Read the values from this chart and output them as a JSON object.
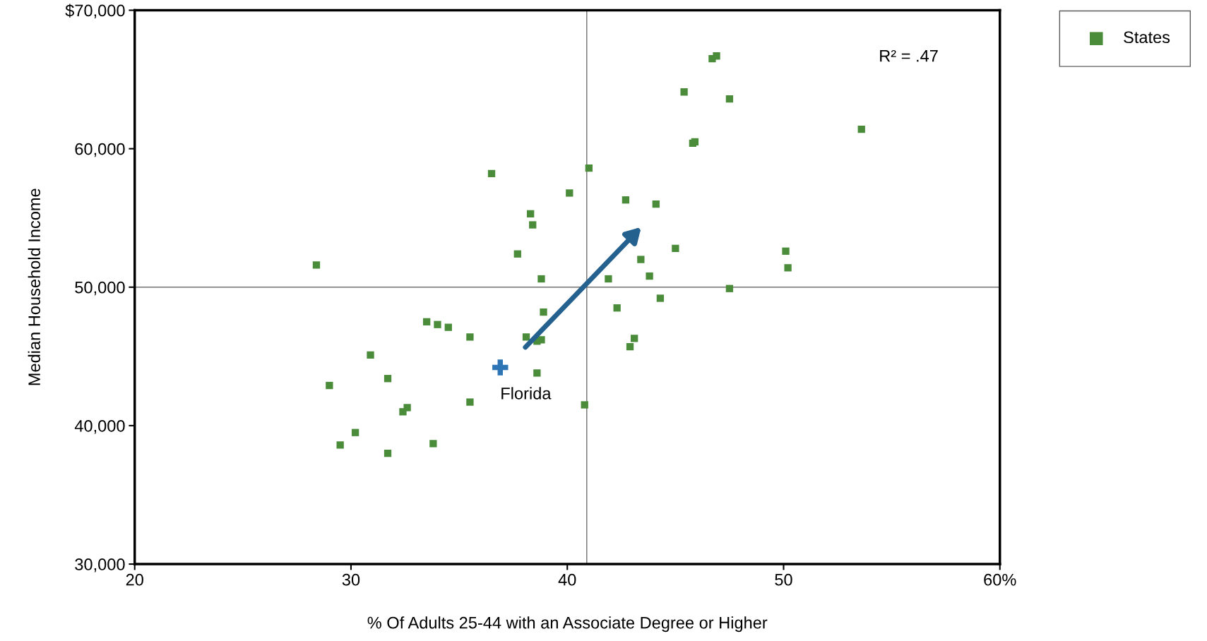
{
  "chart_data": {
    "type": "scatter",
    "xlabel": "% Of Adults 25-44 with an Associate Degree or Higher",
    "ylabel": "Median Household Income",
    "xlim": [
      20,
      60
    ],
    "xticks": [
      20,
      30,
      40,
      50,
      {
        "value": 60,
        "label": "60%"
      }
    ],
    "ylim": [
      30000,
      70000
    ],
    "yticks": [
      {
        "value": 30000,
        "label": "30,000"
      },
      {
        "value": 40000,
        "label": "40,000"
      },
      {
        "value": 50000,
        "label": "50,000"
      },
      {
        "value": 60000,
        "label": "60,000"
      },
      {
        "value": 70000,
        "label": "$70,000"
      }
    ],
    "grid": false,
    "legend": "top right",
    "marker": "square",
    "series": [
      {
        "name": "States",
        "color": "#4a8c3a",
        "x": [
          28.4,
          29.0,
          29.5,
          30.2,
          30.9,
          31.7,
          31.7,
          32.4,
          32.6,
          33.5,
          33.8,
          34.0,
          34.5,
          35.5,
          35.5,
          36.5,
          37.7,
          38.1,
          38.3,
          38.4,
          38.6,
          38.6,
          38.8,
          38.8,
          38.9,
          40.1,
          40.8,
          41.0,
          41.9,
          42.3,
          42.7,
          42.9,
          43.1,
          43.4,
          43.8,
          44.1,
          44.3,
          45.0,
          45.4,
          45.8,
          45.9,
          46.7,
          46.9,
          47.5,
          47.5,
          50.1,
          50.2,
          53.6
        ],
        "values": [
          51600,
          42900,
          38600,
          39500,
          45100,
          43400,
          38000,
          41000,
          41300,
          47500,
          38700,
          47300,
          47100,
          46400,
          41700,
          58200,
          52400,
          46400,
          55300,
          54500,
          43800,
          46100,
          46200,
          50600,
          48200,
          56800,
          41500,
          58600,
          50600,
          48500,
          56300,
          45700,
          46300,
          52000,
          50800,
          56000,
          49200,
          52800,
          64100,
          60400,
          60500,
          66500,
          66700,
          49900,
          63600,
          52600,
          51400,
          61400
        ]
      },
      {
        "color": "#2e75b6",
        "marker": "cross",
        "x": [
          36.9
        ],
        "values": [
          44200
        ]
      }
    ],
    "ref_lines": [
      {
        "axis": "x",
        "value": 40.9,
        "color": "#707070"
      },
      {
        "axis": "y",
        "value": 50000,
        "color": "#707070"
      }
    ],
    "annotations": [
      {
        "text": "Florida",
        "x": 36.9,
        "y": 44200
      },
      "R² = .47"
    ]
  }
}
